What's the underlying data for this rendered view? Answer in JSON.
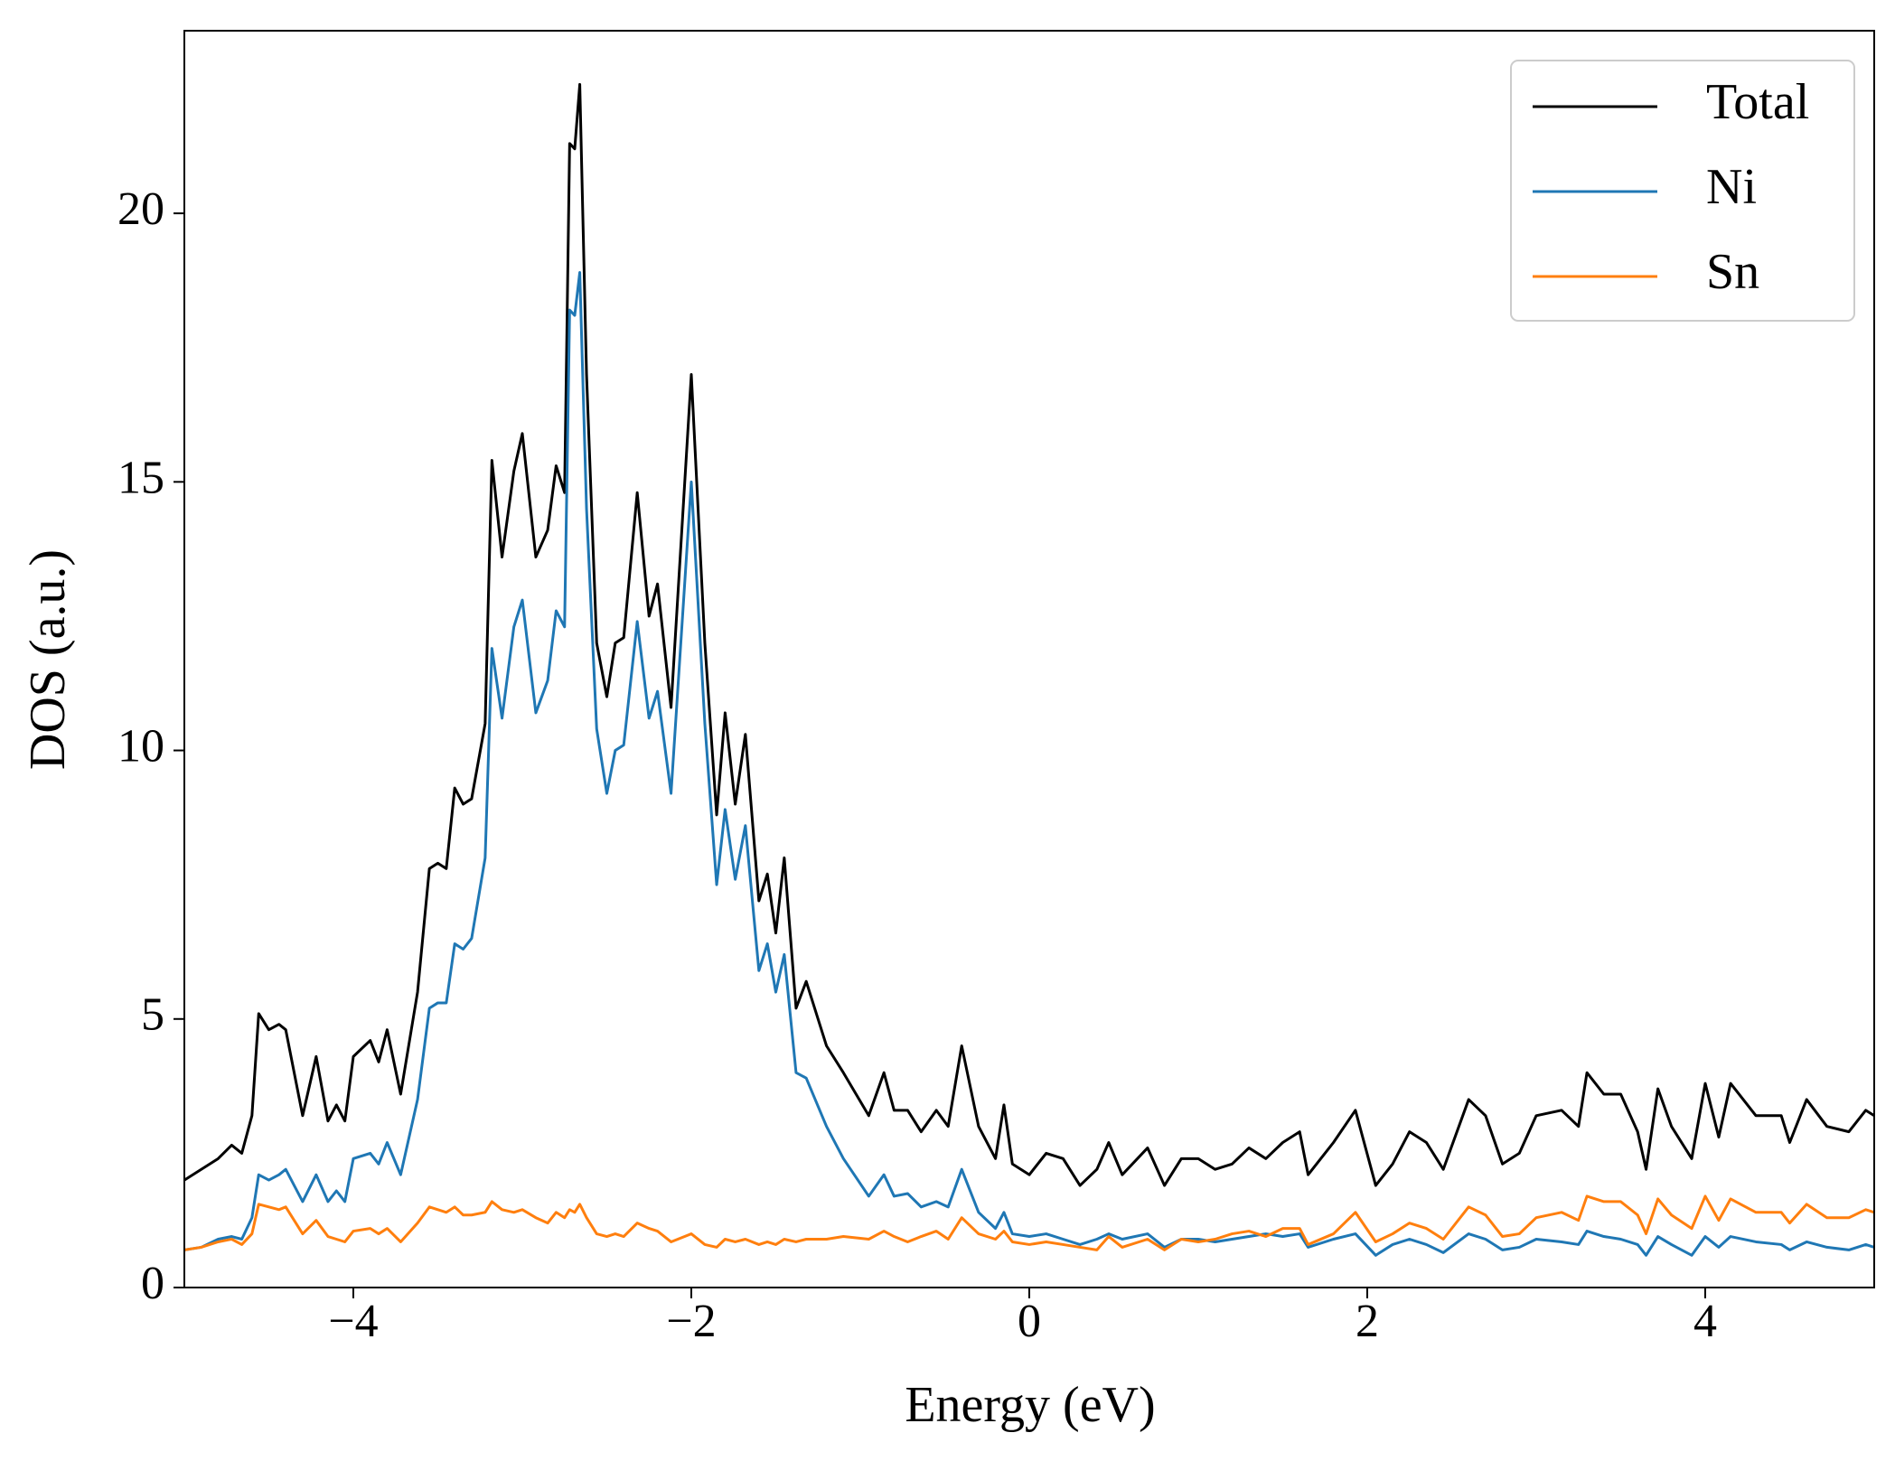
{
  "chart_data": {
    "type": "line",
    "xlabel": "Energy (eV)",
    "ylabel": "DOS (a.u.)",
    "xlim": [
      -5,
      5
    ],
    "ylim": [
      0,
      23.4
    ],
    "xticks": [
      {
        "value": -4,
        "label": "−4"
      },
      {
        "value": -2,
        "label": "−2"
      },
      0,
      2,
      4
    ],
    "yticks": [
      0,
      5,
      10,
      15,
      20
    ],
    "grid": false,
    "legend": "upper right",
    "x": [
      -5.0,
      -4.9,
      -4.8,
      -4.72,
      -4.66,
      -4.6,
      -4.56,
      -4.5,
      -4.44,
      -4.4,
      -4.3,
      -4.22,
      -4.15,
      -4.1,
      -4.05,
      -4.0,
      -3.9,
      -3.85,
      -3.8,
      -3.72,
      -3.62,
      -3.55,
      -3.5,
      -3.45,
      -3.4,
      -3.35,
      -3.3,
      -3.22,
      -3.18,
      -3.12,
      -3.05,
      -3.0,
      -2.92,
      -2.85,
      -2.8,
      -2.75,
      -2.72,
      -2.69,
      -2.66,
      -2.62,
      -2.56,
      -2.5,
      -2.45,
      -2.4,
      -2.32,
      -2.25,
      -2.2,
      -2.12,
      -2.0,
      -1.92,
      -1.85,
      -1.8,
      -1.74,
      -1.68,
      -1.6,
      -1.55,
      -1.5,
      -1.45,
      -1.38,
      -1.32,
      -1.2,
      -1.1,
      -0.95,
      -0.86,
      -0.8,
      -0.72,
      -0.64,
      -0.55,
      -0.48,
      -0.4,
      -0.3,
      -0.2,
      -0.15,
      -0.1,
      0.0,
      0.1,
      0.2,
      0.3,
      0.4,
      0.47,
      0.55,
      0.7,
      0.8,
      0.9,
      1.0,
      1.1,
      1.2,
      1.3,
      1.4,
      1.5,
      1.6,
      1.65,
      1.8,
      1.93,
      2.05,
      2.15,
      2.25,
      2.35,
      2.45,
      2.6,
      2.7,
      2.8,
      2.9,
      3.0,
      3.15,
      3.25,
      3.3,
      3.4,
      3.5,
      3.6,
      3.65,
      3.72,
      3.8,
      3.92,
      4.0,
      4.08,
      4.15,
      4.3,
      4.45,
      4.5,
      4.6,
      4.72,
      4.85,
      4.95,
      5.0
    ],
    "series": [
      {
        "name": "Total",
        "color": "#000000",
        "values": [
          2.0,
          2.2,
          2.4,
          2.65,
          2.5,
          3.2,
          5.1,
          4.8,
          4.9,
          4.8,
          3.2,
          4.3,
          3.1,
          3.4,
          3.1,
          4.3,
          4.6,
          4.2,
          4.8,
          3.6,
          5.5,
          7.8,
          7.9,
          7.8,
          9.3,
          9.0,
          9.1,
          10.5,
          15.4,
          13.6,
          15.2,
          15.9,
          13.6,
          14.1,
          15.3,
          14.8,
          21.3,
          21.2,
          22.4,
          17.0,
          12.0,
          11.0,
          12.0,
          12.1,
          14.8,
          12.5,
          13.1,
          10.8,
          17.0,
          12.0,
          8.8,
          10.7,
          9.0,
          10.3,
          7.2,
          7.7,
          6.6,
          8.0,
          5.2,
          5.7,
          4.5,
          4.0,
          3.2,
          4.0,
          3.3,
          3.3,
          2.9,
          3.3,
          3.0,
          4.5,
          3.0,
          2.4,
          3.4,
          2.3,
          2.1,
          2.5,
          2.4,
          1.9,
          2.2,
          2.7,
          2.1,
          2.6,
          1.9,
          2.4,
          2.4,
          2.2,
          2.3,
          2.6,
          2.4,
          2.7,
          2.9,
          2.1,
          2.7,
          3.3,
          1.9,
          2.3,
          2.9,
          2.7,
          2.2,
          3.5,
          3.2,
          2.3,
          2.5,
          3.2,
          3.3,
          3.0,
          4.0,
          3.6,
          3.6,
          2.9,
          2.2,
          3.7,
          3.0,
          2.4,
          3.8,
          2.8,
          3.8,
          3.2,
          3.2,
          2.7,
          3.5,
          3.0,
          2.9,
          3.3,
          3.2
        ]
      },
      {
        "name": "Ni",
        "color": "#1f77b4",
        "values": [
          0.7,
          0.75,
          0.9,
          0.95,
          0.9,
          1.3,
          2.1,
          2.0,
          2.1,
          2.2,
          1.6,
          2.1,
          1.6,
          1.8,
          1.6,
          2.4,
          2.5,
          2.3,
          2.7,
          2.1,
          3.5,
          5.2,
          5.3,
          5.3,
          6.4,
          6.3,
          6.5,
          8.0,
          11.9,
          10.6,
          12.3,
          12.8,
          10.7,
          11.3,
          12.6,
          12.3,
          18.2,
          18.1,
          18.9,
          14.5,
          10.4,
          9.2,
          10.0,
          10.1,
          12.4,
          10.6,
          11.1,
          9.2,
          15.0,
          10.5,
          7.5,
          8.9,
          7.6,
          8.6,
          5.9,
          6.4,
          5.5,
          6.2,
          4.0,
          3.9,
          3.0,
          2.4,
          1.7,
          2.1,
          1.7,
          1.75,
          1.5,
          1.6,
          1.5,
          2.2,
          1.4,
          1.1,
          1.4,
          1.0,
          0.95,
          1.0,
          0.9,
          0.8,
          0.9,
          1.0,
          0.9,
          1.0,
          0.75,
          0.9,
          0.9,
          0.85,
          0.9,
          0.95,
          1.0,
          0.95,
          1.0,
          0.75,
          0.9,
          1.0,
          0.6,
          0.8,
          0.9,
          0.8,
          0.65,
          1.0,
          0.9,
          0.7,
          0.75,
          0.9,
          0.85,
          0.8,
          1.05,
          0.95,
          0.9,
          0.8,
          0.6,
          0.95,
          0.8,
          0.6,
          0.95,
          0.75,
          0.95,
          0.85,
          0.8,
          0.7,
          0.85,
          0.75,
          0.7,
          0.8,
          0.75
        ]
      },
      {
        "name": "Sn",
        "color": "#ff7f0e",
        "values": [
          0.7,
          0.75,
          0.85,
          0.9,
          0.8,
          1.0,
          1.55,
          1.5,
          1.45,
          1.5,
          1.0,
          1.25,
          0.95,
          0.9,
          0.85,
          1.05,
          1.1,
          1.0,
          1.1,
          0.85,
          1.2,
          1.5,
          1.45,
          1.4,
          1.5,
          1.35,
          1.35,
          1.4,
          1.6,
          1.45,
          1.4,
          1.45,
          1.3,
          1.2,
          1.4,
          1.3,
          1.45,
          1.4,
          1.55,
          1.3,
          1.0,
          0.95,
          1.0,
          0.95,
          1.2,
          1.1,
          1.05,
          0.85,
          1.0,
          0.8,
          0.75,
          0.9,
          0.85,
          0.9,
          0.8,
          0.85,
          0.8,
          0.9,
          0.85,
          0.9,
          0.9,
          0.95,
          0.9,
          1.05,
          0.95,
          0.85,
          0.95,
          1.05,
          0.9,
          1.3,
          1.0,
          0.9,
          1.05,
          0.85,
          0.8,
          0.85,
          0.8,
          0.75,
          0.7,
          0.95,
          0.75,
          0.9,
          0.7,
          0.9,
          0.85,
          0.9,
          1.0,
          1.05,
          0.95,
          1.1,
          1.1,
          0.8,
          1.0,
          1.4,
          0.85,
          1.0,
          1.2,
          1.1,
          0.9,
          1.5,
          1.35,
          0.95,
          1.0,
          1.3,
          1.4,
          1.25,
          1.7,
          1.6,
          1.6,
          1.35,
          1.0,
          1.65,
          1.35,
          1.1,
          1.7,
          1.25,
          1.65,
          1.4,
          1.4,
          1.2,
          1.55,
          1.3,
          1.3,
          1.45,
          1.4
        ]
      }
    ]
  }
}
